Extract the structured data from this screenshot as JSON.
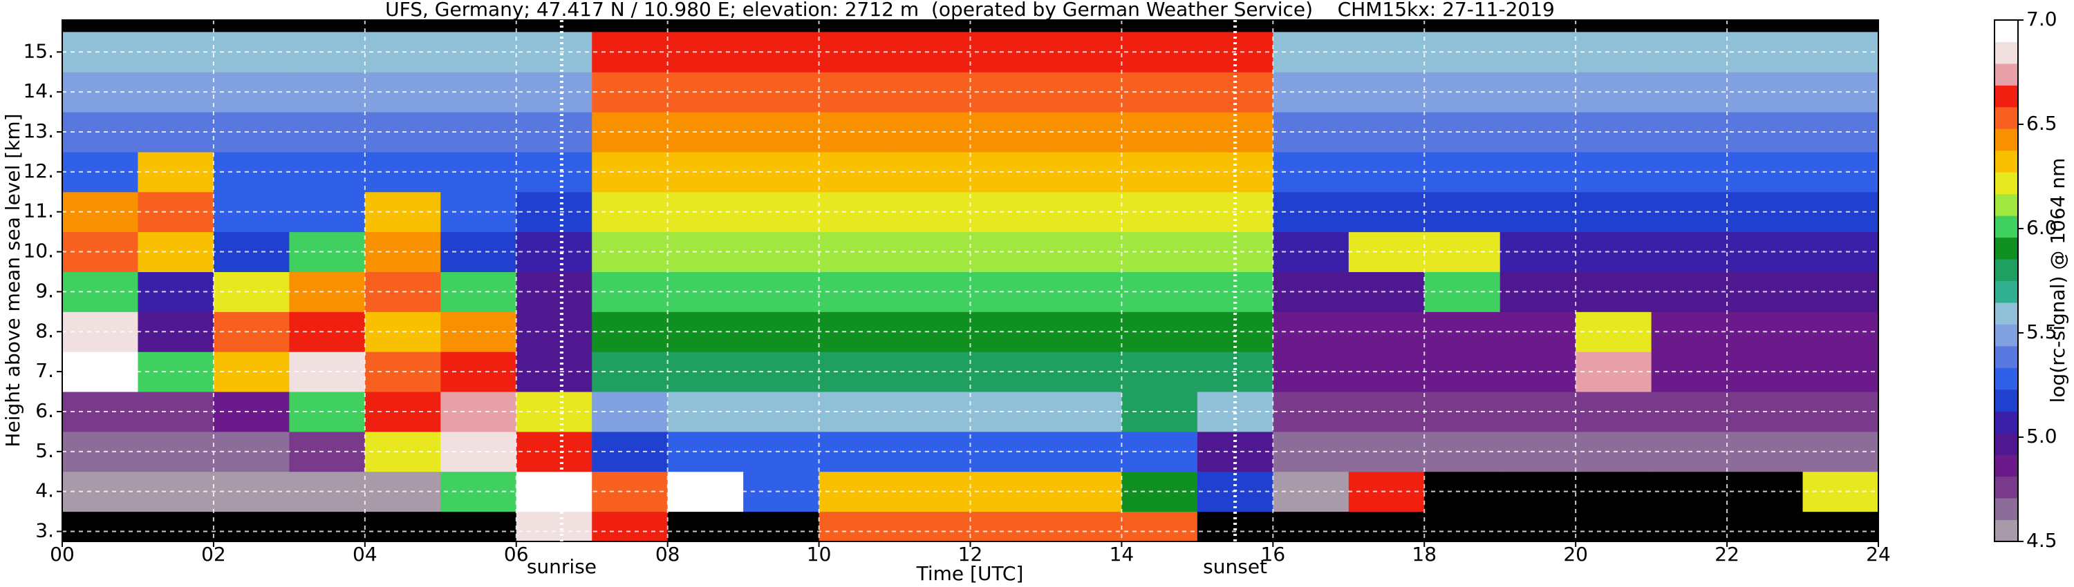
{
  "chart_data": {
    "type": "heatmap",
    "title": "UFS, Germany; 47.417 N / 10.980 E; elevation: 2712 m  (operated by German Weather Service)    CHM15kx: 27-11-2019",
    "xlabel": "Time [UTC]",
    "ylabel": "Height above mean sea level [km]",
    "colorbar_label": "log(rc-signal) @ 1064 nm",
    "x": [
      0.5,
      1.5,
      2.5,
      3.5,
      4.5,
      5.5,
      6.5,
      7.5,
      8.5,
      9.5,
      10.5,
      11.5,
      12.5,
      13.5,
      14.5,
      15.5,
      16.5,
      17.5,
      18.5,
      19.5,
      20.5,
      21.5,
      22.5,
      23.5
    ],
    "y": [
      3,
      4,
      5,
      6,
      7,
      8,
      9,
      10,
      11,
      12,
      13,
      14,
      15
    ],
    "z": [
      [
        4.4,
        4.4,
        4.4,
        4.4,
        4.4,
        4.4,
        6.8,
        6.6,
        4.4,
        4.4,
        6.5,
        6.5,
        6.5,
        6.5,
        6.5,
        4.4,
        4.4,
        4.4,
        4.4,
        4.4,
        4.4,
        4.4,
        4.4,
        4.4
      ],
      [
        4.6,
        4.6,
        4.6,
        4.6,
        4.6,
        6.0,
        7.0,
        6.5,
        6.9,
        5.3,
        6.3,
        6.3,
        6.3,
        6.3,
        5.9,
        5.2,
        4.5,
        6.6,
        4.4,
        4.4,
        4.4,
        4.4,
        4.4,
        6.2
      ],
      [
        4.7,
        4.7,
        4.7,
        4.8,
        6.2,
        6.8,
        6.6,
        5.2,
        5.3,
        5.3,
        5.3,
        5.3,
        5.3,
        5.3,
        5.3,
        5.0,
        4.7,
        4.7,
        4.7,
        4.7,
        4.7,
        4.7,
        4.7,
        4.7
      ],
      [
        4.8,
        4.8,
        4.9,
        6.0,
        6.6,
        6.7,
        6.2,
        5.5,
        5.6,
        5.6,
        5.6,
        5.6,
        5.6,
        5.6,
        5.8,
        5.6,
        4.8,
        4.8,
        4.8,
        4.8,
        4.8,
        4.8,
        4.8,
        4.8
      ],
      [
        6.9,
        6.0,
        6.3,
        6.8,
        6.5,
        6.6,
        5.0,
        5.8,
        5.8,
        5.8,
        5.8,
        5.8,
        5.8,
        5.8,
        5.8,
        5.8,
        4.9,
        4.9,
        4.9,
        4.9,
        6.7,
        4.9,
        4.9,
        4.9
      ],
      [
        6.8,
        5.0,
        6.5,
        6.6,
        6.3,
        6.4,
        5.0,
        5.9,
        5.9,
        5.9,
        5.9,
        5.9,
        5.9,
        5.9,
        5.9,
        5.9,
        4.9,
        4.9,
        4.9,
        4.9,
        6.2,
        4.9,
        4.9,
        4.9
      ],
      [
        6.0,
        5.1,
        6.2,
        6.4,
        6.5,
        6.0,
        5.0,
        6.0,
        6.0,
        6.0,
        6.0,
        6.0,
        6.0,
        6.0,
        6.0,
        6.0,
        5.0,
        5.0,
        6.0,
        5.0,
        5.0,
        5.0,
        5.0,
        5.0
      ],
      [
        6.5,
        6.3,
        5.2,
        6.0,
        6.4,
        5.2,
        5.1,
        6.1,
        6.1,
        6.1,
        6.1,
        6.1,
        6.1,
        6.1,
        6.1,
        6.1,
        5.1,
        6.2,
        6.2,
        5.1,
        5.1,
        5.1,
        5.1,
        5.1
      ],
      [
        6.4,
        6.5,
        5.3,
        5.3,
        6.3,
        5.3,
        5.2,
        6.2,
        6.2,
        6.2,
        6.2,
        6.2,
        6.2,
        6.2,
        6.2,
        6.2,
        5.2,
        5.2,
        5.2,
        5.2,
        5.2,
        5.2,
        5.2,
        5.2
      ],
      [
        5.3,
        6.3,
        5.3,
        5.3,
        5.3,
        5.3,
        5.3,
        6.3,
        6.3,
        6.3,
        6.3,
        6.3,
        6.3,
        6.3,
        6.3,
        6.3,
        5.3,
        5.3,
        5.3,
        5.3,
        5.3,
        5.3,
        5.3,
        5.3
      ],
      [
        5.4,
        5.4,
        5.4,
        5.4,
        5.4,
        5.4,
        5.4,
        6.4,
        6.4,
        6.4,
        6.4,
        6.4,
        6.4,
        6.4,
        6.4,
        6.4,
        5.4,
        5.4,
        5.4,
        5.4,
        5.4,
        5.4,
        5.4,
        5.4
      ],
      [
        5.5,
        5.5,
        5.5,
        5.5,
        5.5,
        5.5,
        5.5,
        6.5,
        6.5,
        6.5,
        6.5,
        6.5,
        6.5,
        6.5,
        6.5,
        6.5,
        5.5,
        5.5,
        5.5,
        5.5,
        5.5,
        5.5,
        5.5,
        5.5
      ],
      [
        5.6,
        5.6,
        5.6,
        5.6,
        5.6,
        5.6,
        5.6,
        6.6,
        6.6,
        6.6,
        6.6,
        6.6,
        6.6,
        6.6,
        6.6,
        6.6,
        5.6,
        5.6,
        5.6,
        5.6,
        5.6,
        5.6,
        5.6,
        5.6
      ]
    ],
    "xlim": [
      0,
      24
    ],
    "xticks": [
      {
        "value": 0,
        "label": "00"
      },
      {
        "value": 2,
        "label": "02"
      },
      {
        "value": 4,
        "label": "04"
      },
      {
        "value": 6,
        "label": "06"
      },
      {
        "value": 8,
        "label": "08"
      },
      10,
      12,
      14,
      16,
      18,
      20,
      22,
      24
    ],
    "ylim": [
      2.75,
      15.8
    ],
    "yticks": [
      {
        "value": 3,
        "label": "3."
      },
      {
        "value": 4,
        "label": "4."
      },
      {
        "value": 5,
        "label": "5."
      },
      {
        "value": 6,
        "label": "6."
      },
      {
        "value": 7,
        "label": "7."
      },
      {
        "value": 8,
        "label": "8."
      },
      {
        "value": 9,
        "label": "9."
      },
      {
        "value": 10,
        "label": "10."
      },
      {
        "value": 11,
        "label": "11."
      },
      {
        "value": 12,
        "label": "12."
      },
      {
        "value": 13,
        "label": "13."
      },
      {
        "value": 14,
        "label": "14."
      },
      {
        "value": 15,
        "label": "15."
      }
    ],
    "clim": [
      4.5,
      7.0
    ],
    "cticks": [
      4.5,
      {
        "value": 5,
        "label": "5.0"
      },
      5.5,
      {
        "value": 6,
        "label": "6.0"
      },
      6.5,
      {
        "value": 7,
        "label": "7.0"
      }
    ],
    "colors": [
      "#a89aa8",
      "#8c6c98",
      "#7a3a8c",
      "#6a1a8a",
      "#501890",
      "#3a20a8",
      "#2040d0",
      "#3060e8",
      "#5878e0",
      "#80a0e0",
      "#90c0d8",
      "#30b090",
      "#20a060",
      "#109020",
      "#40d060",
      "#a0e840",
      "#e8e820",
      "#f8c000",
      "#f89000",
      "#f86020",
      "#f02010",
      "#e8a0a8",
      "#f0e0e0",
      "#ffffff"
    ],
    "under_color": "#000000",
    "grid": true,
    "annotations": [
      {
        "text": "sunrise",
        "x": 6.6
      },
      {
        "text": "sunset",
        "x": 15.5
      }
    ]
  }
}
